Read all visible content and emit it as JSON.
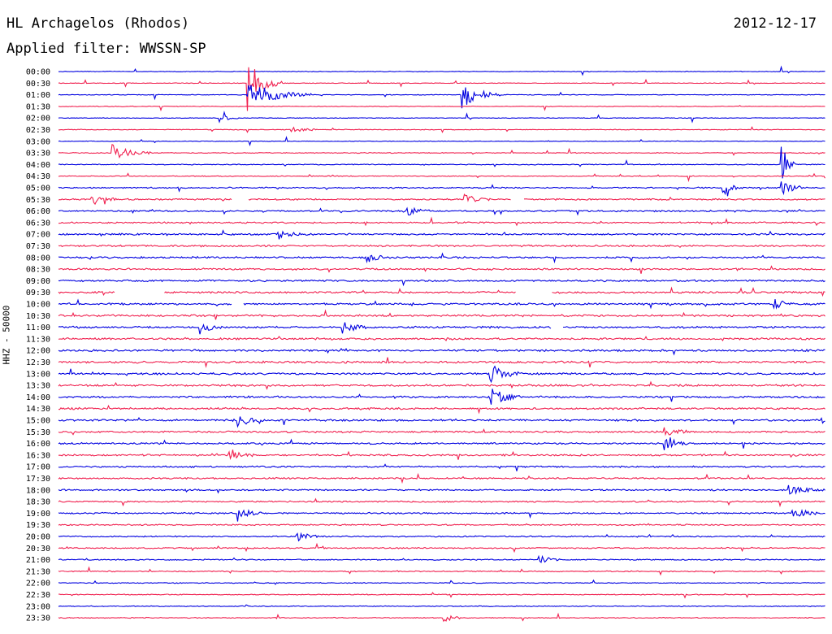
{
  "header": {
    "station": "HL Archagelos (Rhodos)",
    "date": "2012-12-17",
    "filter": "Applied filter: WWSSN-SP"
  },
  "chart_data": {
    "type": "line",
    "title": "HL Archagelos (Rhodos)",
    "subtitle": "Applied filter: WWSSN-SP",
    "date": "2012-12-17",
    "ylabel": "HHZ - 50000",
    "trace_labels": [
      "00:00",
      "00:30",
      "01:00",
      "01:30",
      "02:00",
      "02:30",
      "03:00",
      "03:30",
      "04:00",
      "04:30",
      "05:00",
      "05:30",
      "06:00",
      "06:30",
      "07:00",
      "07:30",
      "08:00",
      "08:30",
      "09:00",
      "09:30",
      "10:00",
      "10:30",
      "11:00",
      "11:30",
      "12:00",
      "12:30",
      "13:00",
      "13:30",
      "14:00",
      "14:30",
      "15:00",
      "15:30",
      "16:00",
      "16:30",
      "17:00",
      "17:30",
      "18:00",
      "18:30",
      "19:00",
      "19:30",
      "20:00",
      "20:30",
      "21:00",
      "21:30",
      "22:00",
      "22:30",
      "23:00",
      "23:30"
    ],
    "trace_minutes": 30,
    "colors": [
      "#0000e0",
      "#f0204f"
    ],
    "noise_level": [
      0.3,
      0.3,
      0.3,
      0.3,
      0.3,
      0.3,
      0.3,
      0.4,
      0.4,
      0.4,
      0.6,
      0.7,
      0.7,
      0.7,
      0.8,
      0.8,
      0.8,
      0.8,
      0.8,
      0.8,
      0.9,
      0.9,
      0.9,
      0.9,
      0.9,
      0.9,
      0.9,
      0.9,
      0.9,
      0.9,
      0.9,
      0.8,
      0.8,
      0.8,
      0.7,
      0.7,
      0.7,
      0.7,
      0.7,
      0.6,
      0.6,
      0.6,
      0.5,
      0.5,
      0.4,
      0.4,
      0.4,
      0.4
    ],
    "events": [
      {
        "trace": "00:30",
        "minute": 7.4,
        "amplitude": 6,
        "duration": 1.2
      },
      {
        "trace": "01:00",
        "minute": 7.4,
        "amplitude": 3,
        "duration": 2.5
      },
      {
        "trace": "01:00",
        "minute": 15.8,
        "amplitude": 3,
        "duration": 1.5
      },
      {
        "trace": "02:00",
        "minute": 6.3,
        "amplitude": 0.8,
        "duration": 0.8
      },
      {
        "trace": "02:30",
        "minute": 9.1,
        "amplitude": 0.8,
        "duration": 1.2
      },
      {
        "trace": "03:30",
        "minute": 2.1,
        "amplitude": 1.8,
        "duration": 1.5
      },
      {
        "trace": "04:00",
        "minute": 28.3,
        "amplitude": 4,
        "duration": 0.5
      },
      {
        "trace": "05:00",
        "minute": 26.0,
        "amplitude": 1.4,
        "duration": 1.0
      },
      {
        "trace": "05:00",
        "minute": 28.3,
        "amplitude": 1.4,
        "duration": 1.0
      },
      {
        "trace": "05:30",
        "minute": 1.3,
        "amplitude": 1.2,
        "duration": 1.0
      },
      {
        "trace": "05:30",
        "minute": 15.9,
        "amplitude": 1.2,
        "duration": 1.0
      },
      {
        "trace": "06:00",
        "minute": 13.5,
        "amplitude": 1.2,
        "duration": 1.0
      },
      {
        "trace": "07:00",
        "minute": 8.6,
        "amplitude": 1.0,
        "duration": 1.0
      },
      {
        "trace": "08:00",
        "minute": 12.1,
        "amplitude": 0.9,
        "duration": 1.0
      },
      {
        "trace": "10:00",
        "minute": 28.0,
        "amplitude": 1.2,
        "duration": 0.8
      },
      {
        "trace": "11:00",
        "minute": 5.5,
        "amplitude": 1.6,
        "duration": 0.8
      },
      {
        "trace": "11:00",
        "minute": 11.1,
        "amplitude": 1.4,
        "duration": 1.0
      },
      {
        "trace": "13:00",
        "minute": 16.9,
        "amplitude": 2.0,
        "duration": 1.2
      },
      {
        "trace": "14:00",
        "minute": 16.9,
        "amplitude": 2.0,
        "duration": 1.2
      },
      {
        "trace": "15:00",
        "minute": 7.0,
        "amplitude": 1.6,
        "duration": 1.0
      },
      {
        "trace": "15:00",
        "minute": 29.8,
        "amplitude": 1.4,
        "duration": 0.8
      },
      {
        "trace": "15:30",
        "minute": 23.7,
        "amplitude": 1.6,
        "duration": 1.0
      },
      {
        "trace": "16:00",
        "minute": 23.7,
        "amplitude": 1.4,
        "duration": 1.0
      },
      {
        "trace": "16:30",
        "minute": 6.7,
        "amplitude": 1.4,
        "duration": 1.0
      },
      {
        "trace": "18:00",
        "minute": 28.5,
        "amplitude": 1.2,
        "duration": 1.5
      },
      {
        "trace": "19:00",
        "minute": 7.0,
        "amplitude": 1.6,
        "duration": 1.0
      },
      {
        "trace": "19:00",
        "minute": 28.7,
        "amplitude": 1.6,
        "duration": 1.0
      },
      {
        "trace": "20:00",
        "minute": 9.3,
        "amplitude": 1.0,
        "duration": 1.2
      },
      {
        "trace": "21:00",
        "minute": 18.8,
        "amplitude": 0.9,
        "duration": 0.8
      },
      {
        "trace": "23:30",
        "minute": 15.1,
        "amplitude": 1.2,
        "duration": 0.6
      }
    ],
    "gaps": [
      {
        "trace": "05:30",
        "start_minute": 6.8,
        "end_minute": 7.4
      },
      {
        "trace": "05:30",
        "start_minute": 17.7,
        "end_minute": 18.2
      },
      {
        "trace": "09:30",
        "start_minute": 2.2,
        "end_minute": 4.1
      },
      {
        "trace": "09:30",
        "start_minute": 17.9,
        "end_minute": 19.3
      },
      {
        "trace": "10:00",
        "start_minute": 6.8,
        "end_minute": 7.2
      },
      {
        "trace": "11:00",
        "start_minute": 19.3,
        "end_minute": 19.7
      }
    ]
  }
}
